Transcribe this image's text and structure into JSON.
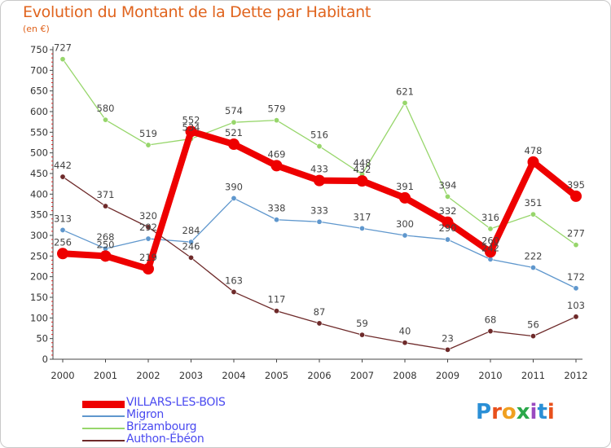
{
  "header": {
    "title": "Evolution du Montant de la Dette par Habitant",
    "subtitle": "(en €)"
  },
  "brand": {
    "letters": [
      "P",
      "r",
      "o",
      "x",
      "i",
      "t",
      "i"
    ],
    "colors": [
      "#2a8fd6",
      "#e8501c",
      "#f0a020",
      "#2aa84a",
      "#9a4ac0",
      "#2a8fd6",
      "#e8501c"
    ]
  },
  "chart_data": {
    "type": "line",
    "title": "Evolution du Montant de la Dette par Habitant",
    "subtitle": "(en €)",
    "xlabel": "",
    "ylabel": "",
    "x": [
      "2000",
      "2001",
      "2002",
      "2003",
      "2004",
      "2005",
      "2006",
      "2007",
      "2008",
      "2009",
      "2010",
      "2011",
      "2012"
    ],
    "ylim": [
      0,
      750
    ],
    "yticks": [
      0,
      50,
      100,
      150,
      200,
      250,
      300,
      350,
      400,
      450,
      500,
      550,
      600,
      650,
      700,
      750
    ],
    "grid": false,
    "legend_position": "bottom-left",
    "series": [
      {
        "name": "VILLARS-LES-BOIS",
        "color": "#ee0000",
        "width": 8,
        "marker": 7,
        "values": [
          256,
          250,
          219,
          552,
          521,
          469,
          433,
          432,
          391,
          332,
          260,
          478,
          395
        ]
      },
      {
        "name": "Migron",
        "color": "#5f97cd",
        "width": 1.3,
        "marker": 3.2,
        "values": [
          313,
          268,
          292,
          284,
          390,
          338,
          333,
          317,
          300,
          290,
          242,
          222,
          172
        ]
      },
      {
        "name": "Brizambourg",
        "color": "#97d66b",
        "width": 1.3,
        "marker": 3.2,
        "values": [
          727,
          580,
          519,
          534,
          574,
          579,
          516,
          448,
          621,
          394,
          316,
          351,
          277
        ]
      },
      {
        "name": "Authon-Ébéon",
        "color": "#6e2a2a",
        "width": 1.3,
        "marker": 3.2,
        "values": [
          442,
          371,
          320,
          246,
          163,
          117,
          87,
          59,
          40,
          23,
          68,
          56,
          103
        ]
      }
    ]
  }
}
